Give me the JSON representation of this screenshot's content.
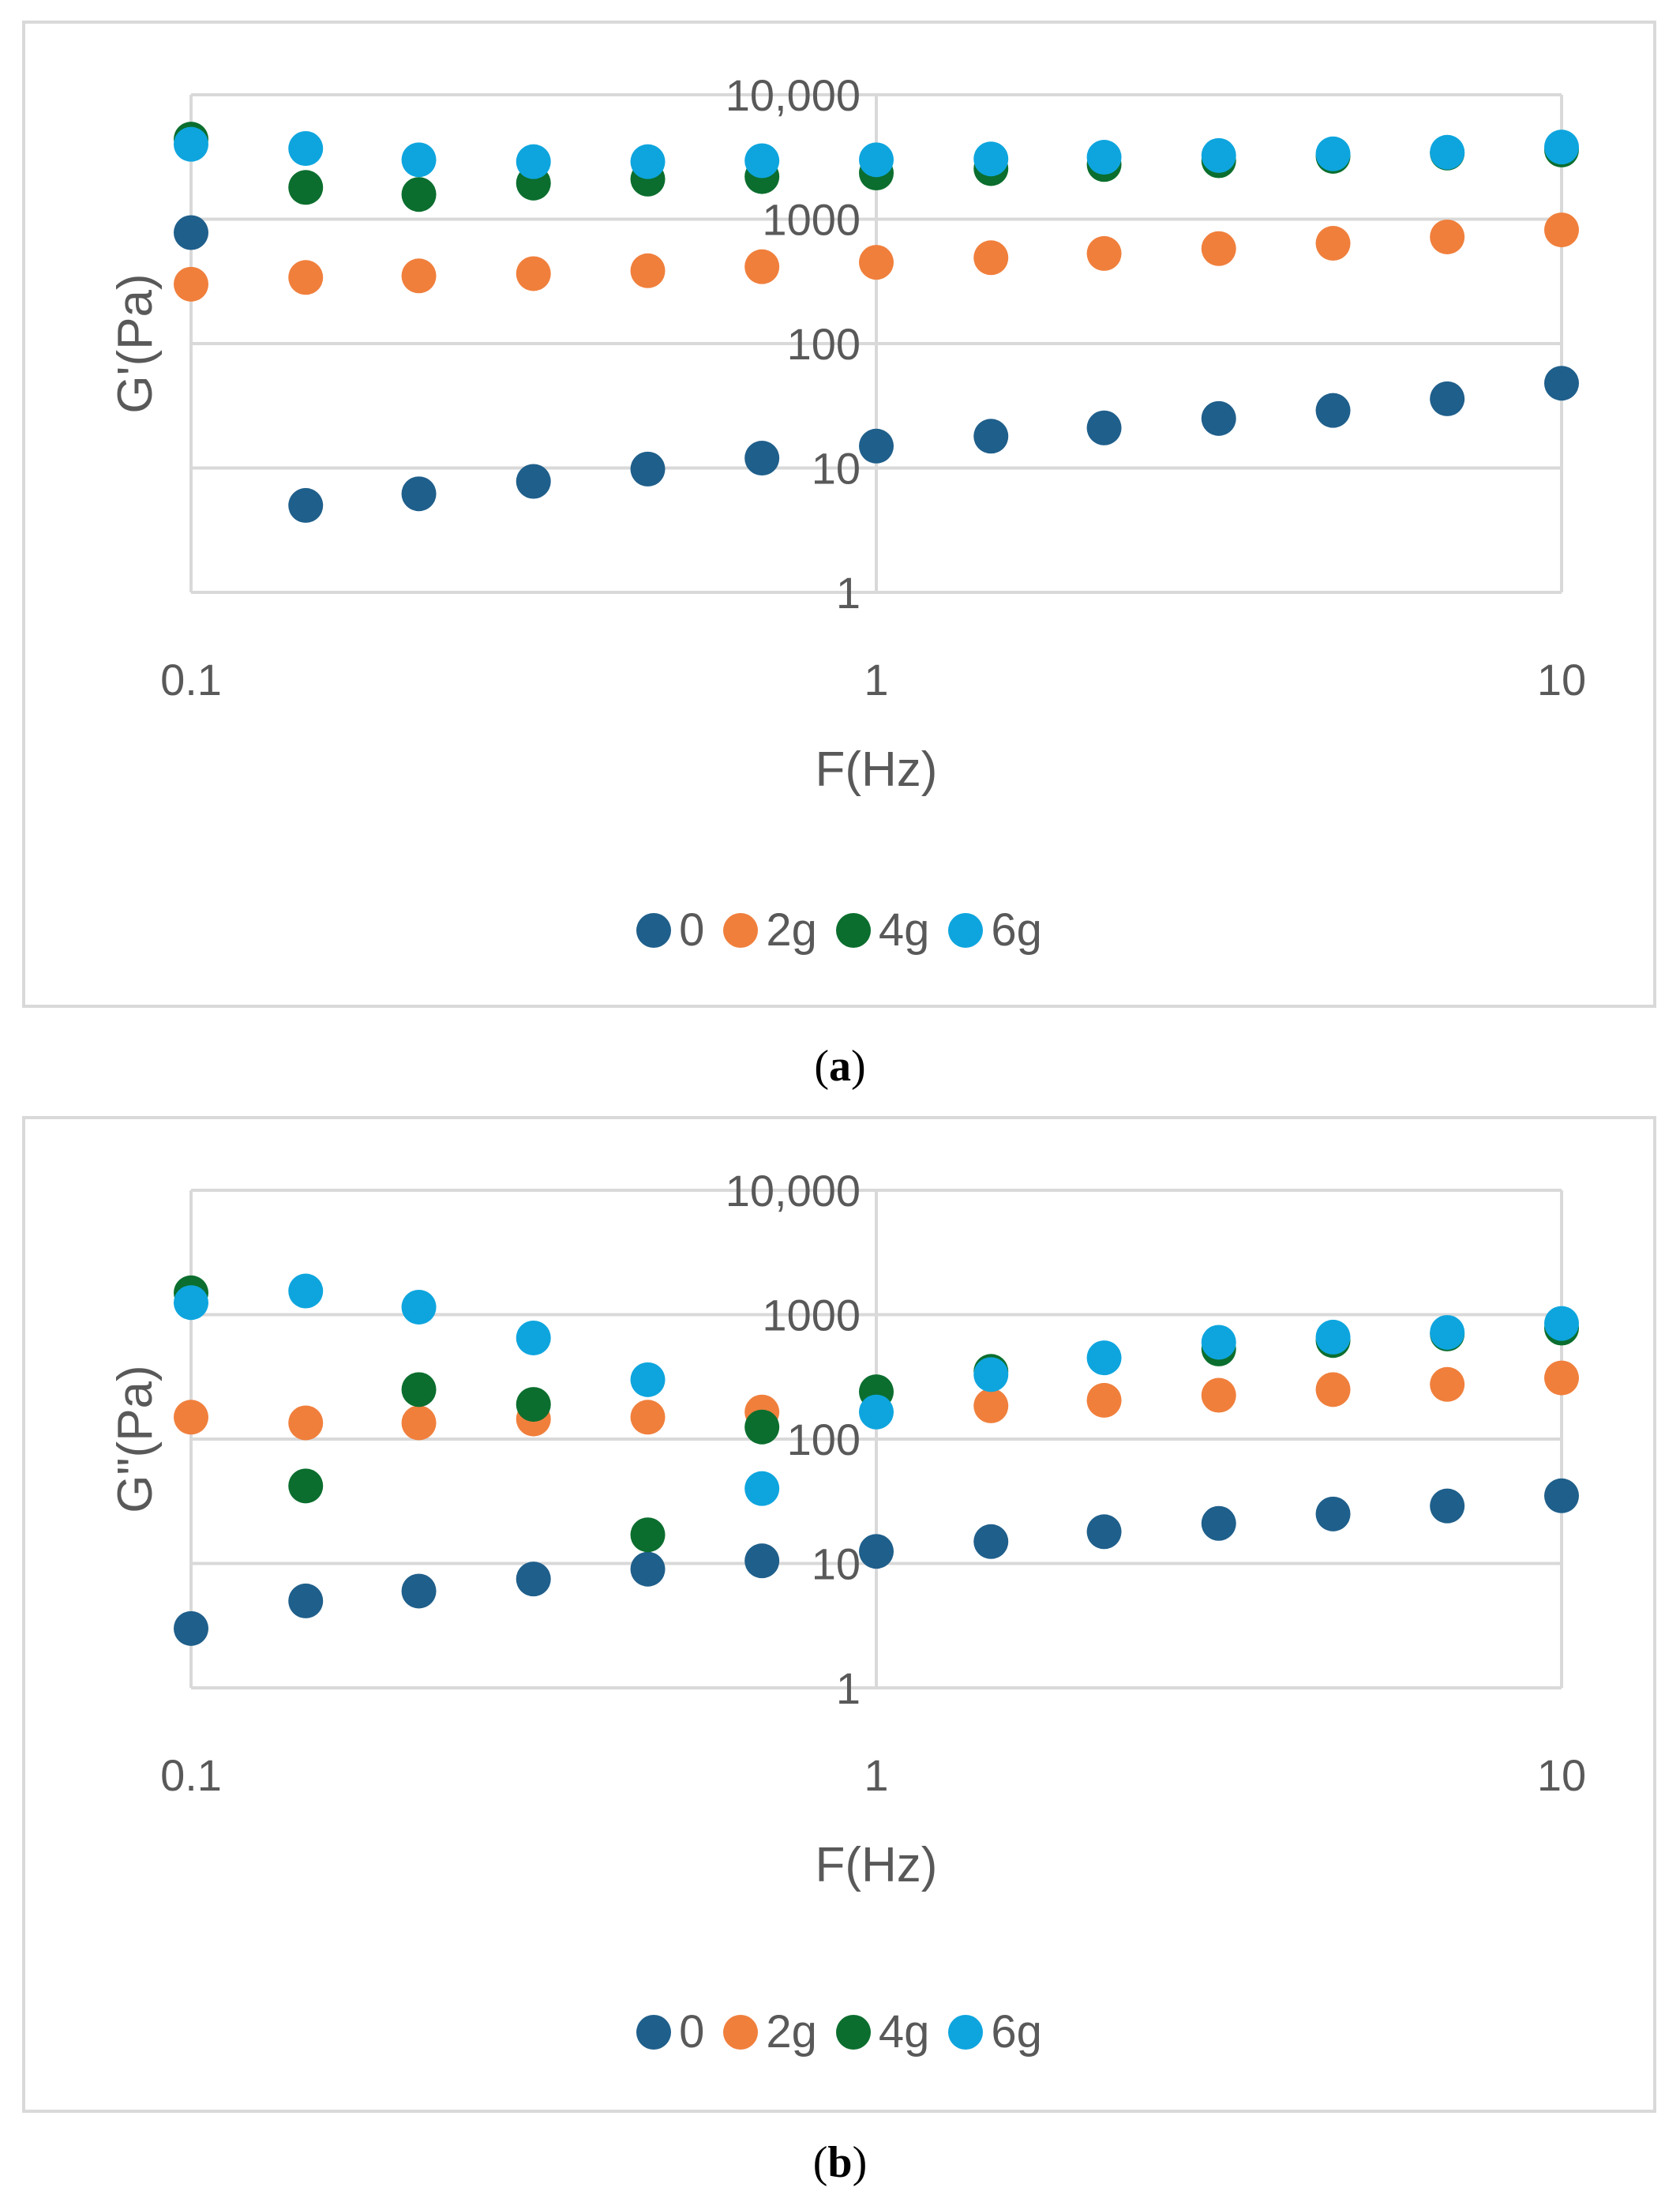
{
  "chart_data": [
    {
      "type": "scatter",
      "panel_label": "a",
      "xlabel": "F(Hz)",
      "ylabel": "G'(Pa)",
      "xscale": "log",
      "yscale": "log",
      "xlim": [
        0.1,
        10
      ],
      "ylim": [
        1,
        10000
      ],
      "x_ticks": [
        "0.1",
        "1",
        "10"
      ],
      "y_ticks": [
        "1",
        "10",
        "100",
        "1000",
        "10,000"
      ],
      "grid": true,
      "legend_position": "bottom",
      "x": [
        0.1,
        0.147,
        0.215,
        0.316,
        0.464,
        0.681,
        1,
        1.47,
        2.15,
        3.16,
        4.64,
        6.81,
        10
      ],
      "series": [
        {
          "name": "0",
          "color": "#1F5F8B",
          "values": [
            780,
            5,
            6.2,
            7.8,
            9.8,
            12,
            15,
            18,
            21,
            25,
            29,
            36,
            48
          ]
        },
        {
          "name": "2g",
          "color": "#F07F3C",
          "values": [
            300,
            340,
            350,
            365,
            385,
            415,
            450,
            490,
            530,
            580,
            640,
            720,
            820
          ]
        },
        {
          "name": "4g",
          "color": "#0B6E2E",
          "values": [
            4400,
            1800,
            1580,
            1950,
            2100,
            2200,
            2350,
            2550,
            2750,
            2950,
            3200,
            3400,
            3600
          ]
        },
        {
          "name": "6g",
          "color": "#0EA5DE",
          "values": [
            4000,
            3700,
            3000,
            2900,
            2900,
            2950,
            3000,
            3050,
            3150,
            3250,
            3350,
            3450,
            3800
          ]
        }
      ]
    },
    {
      "type": "scatter",
      "panel_label": "b",
      "xlabel": "F(Hz)",
      "ylabel": "G\"(Pa)",
      "xscale": "log",
      "yscale": "log",
      "xlim": [
        0.1,
        10
      ],
      "ylim": [
        1,
        10000
      ],
      "x_ticks": [
        "0.1",
        "1",
        "10"
      ],
      "y_ticks": [
        "1",
        "10",
        "100",
        "1000",
        "10,000"
      ],
      "grid": true,
      "legend_position": "bottom",
      "x": [
        0.1,
        0.147,
        0.215,
        0.316,
        0.464,
        0.681,
        1,
        1.47,
        2.15,
        3.16,
        4.64,
        6.81,
        10
      ],
      "series": [
        {
          "name": "0",
          "color": "#1F5F8B",
          "values": [
            3,
            5,
            6,
            7.5,
            9,
            10.5,
            12.5,
            15,
            18,
            21,
            25,
            29,
            35
          ]
        },
        {
          "name": "2g",
          "color": "#F07F3C",
          "values": [
            150,
            135,
            135,
            145,
            150,
            165,
            null,
            185,
            205,
            225,
            250,
            275,
            310
          ]
        },
        {
          "name": "4g",
          "color": "#0B6E2E",
          "values": [
            1500,
            42,
            250,
            190,
            17,
            125,
            240,
            350,
            null,
            530,
            620,
            700,
            780
          ]
        },
        {
          "name": "6g",
          "color": "#0EA5DE",
          "values": [
            1250,
            1550,
            1150,
            650,
            300,
            40,
            165,
            330,
            450,
            600,
            660,
            720,
            850
          ]
        }
      ]
    }
  ]
}
